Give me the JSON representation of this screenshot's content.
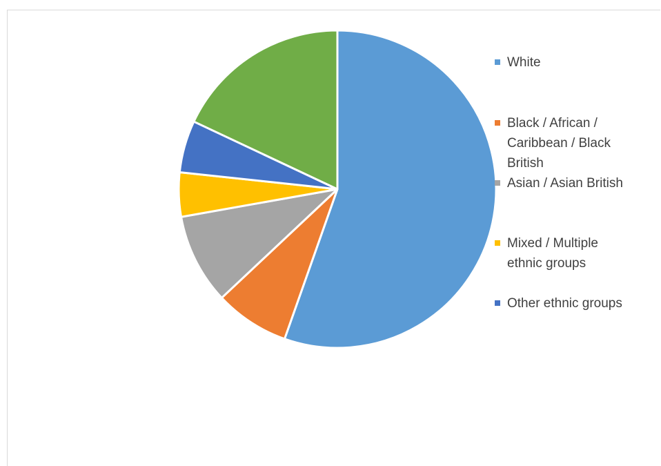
{
  "chart_data": {
    "type": "pie",
    "title": "",
    "legend_position": "right",
    "start_angle_deg": 0,
    "direction": "clockwise",
    "slices": [
      {
        "label": "White",
        "value": 55.4,
        "color": "#5B9BD5"
      },
      {
        "label": "Black / African / Caribbean / Black British",
        "value": 7.6,
        "color": "#ED7D31"
      },
      {
        "label": "Asian / Asian British",
        "value": 9.2,
        "color": "#A5A5A5"
      },
      {
        "label": "Mixed / Multiple ethnic groups",
        "value": 4.5,
        "color": "#FFC000"
      },
      {
        "label": "Other ethnic groups",
        "value": 5.3,
        "color": "#4472C4"
      },
      {
        "label": "",
        "value": 18.0,
        "color": "#70AD47"
      }
    ]
  },
  "legend": {
    "items": [
      {
        "label": "White",
        "color": "#5B9BD5"
      },
      {
        "label": "Black / African / Caribbean / Black British",
        "color": "#ED7D31"
      },
      {
        "label": "Asian / Asian British",
        "color": "#A5A5A5"
      },
      {
        "label": "Mixed / Multiple ethnic groups",
        "color": "#FFC000"
      },
      {
        "label": "Other ethnic groups",
        "color": "#4472C4"
      }
    ]
  }
}
